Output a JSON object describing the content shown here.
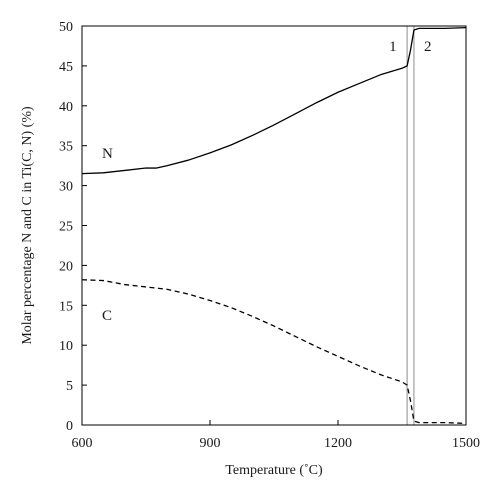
{
  "chart_data": {
    "type": "line",
    "title": "",
    "xlabel": "Temperature (˚C)",
    "ylabel": "Molar percentage N and C in Ti(C, N) (%)",
    "xlim": [
      600,
      1500
    ],
    "ylim": [
      0,
      50
    ],
    "xticks": [
      600,
      900,
      1200,
      1500
    ],
    "yticks": [
      0,
      5,
      10,
      15,
      20,
      25,
      30,
      35,
      40,
      45,
      50
    ],
    "grid": false,
    "legend": "none",
    "series": [
      {
        "label": "N",
        "style": "solid",
        "color": "#000000",
        "x": [
          600,
          650,
          700,
          750,
          775,
          800,
          850,
          900,
          950,
          1000,
          1050,
          1100,
          1150,
          1200,
          1250,
          1300,
          1350,
          1362,
          1370,
          1378,
          1390,
          1450,
          1500
        ],
        "y": [
          31.5,
          31.6,
          31.9,
          32.2,
          32.2,
          32.5,
          33.2,
          34.1,
          35.1,
          36.3,
          37.6,
          39.0,
          40.4,
          41.7,
          42.8,
          43.9,
          44.7,
          45.0,
          47.0,
          49.5,
          49.7,
          49.7,
          49.8
        ]
      },
      {
        "label": "C",
        "style": "dashed",
        "color": "#000000",
        "x": [
          600,
          650,
          700,
          750,
          800,
          850,
          900,
          950,
          1000,
          1050,
          1100,
          1150,
          1200,
          1250,
          1300,
          1350,
          1362,
          1370,
          1378,
          1390,
          1450,
          1500
        ],
        "y": [
          18.2,
          18.1,
          17.6,
          17.3,
          17.0,
          16.4,
          15.6,
          14.7,
          13.6,
          12.4,
          11.1,
          9.8,
          8.6,
          7.4,
          6.3,
          5.4,
          5.0,
          3.0,
          0.5,
          0.3,
          0.3,
          0.2
        ]
      }
    ],
    "vertical_lines": [
      {
        "x": 1362,
        "label": "1",
        "color": "#a0a0a0"
      },
      {
        "x": 1378,
        "label": "2",
        "color": "#a0a0a0"
      }
    ]
  }
}
